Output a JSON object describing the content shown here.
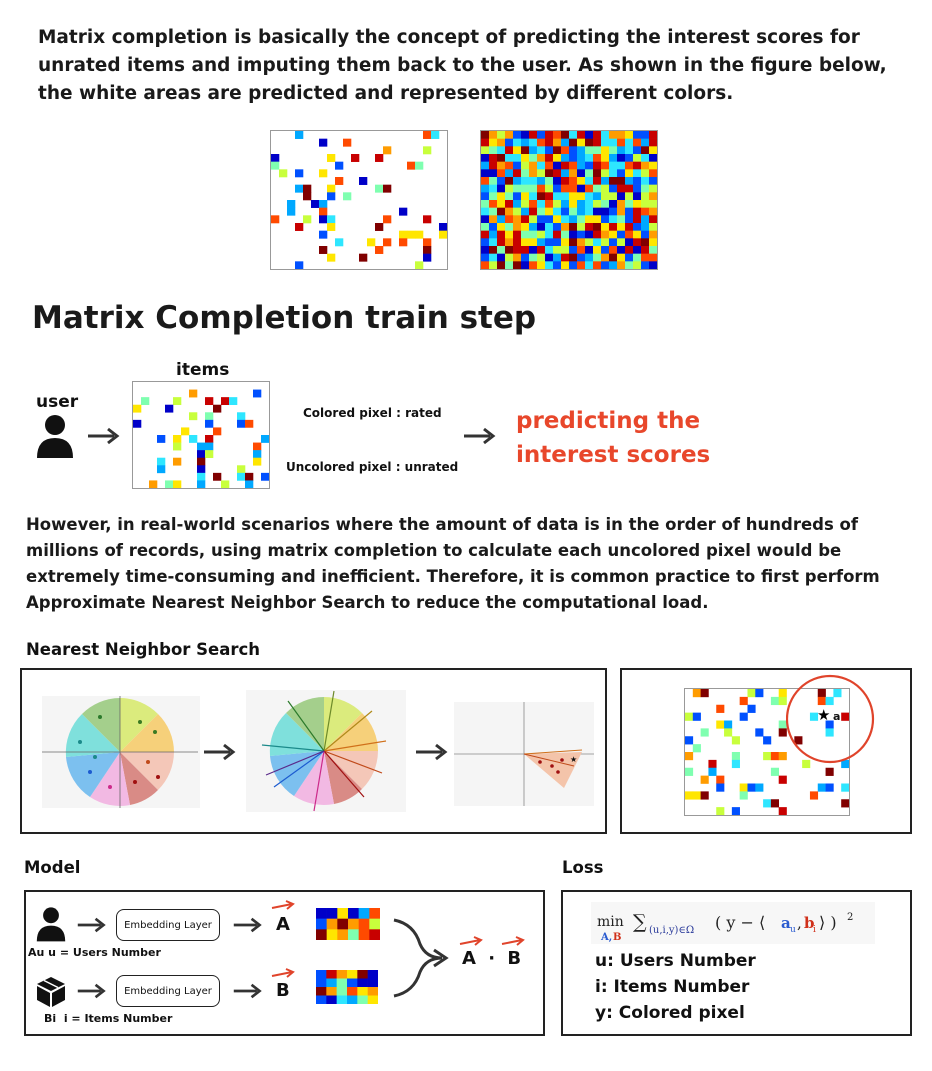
{
  "intro": {
    "text": "Matrix completion is basically the concept of predicting the interest scores for unrated items and imputing them back to the user. As shown in the figure below, the white areas are predicted and represented by different colors."
  },
  "train": {
    "title": "Matrix Completion train step",
    "user_label": "user",
    "items_label": "items",
    "colored_label": "Colored pixel : rated",
    "uncolored_label": "Uncolored pixel : unrated",
    "result_line1": "predicting the",
    "result_line2": "interest scores",
    "result_color": "#e8472b"
  },
  "however": {
    "text": "However, in real-world scenarios where the amount of data is in the order of hundreds of millions of records, using matrix completion to calculate each uncolored pixel would be extremely time-consuming and inefficient. Therefore, it is common practice to first perform Approximate Nearest Neighbor Search to reduce the computational load."
  },
  "nns": {
    "title": "Nearest Neighbor Search",
    "star_label": "a"
  },
  "model": {
    "title": "Model",
    "embedding_label_1": "Embedding Layer",
    "embedding_label_2": "Embedding Layer",
    "user_caption": "Au u = Users Number",
    "item_caption": "Bi  i = Items Number",
    "vec_a": "A",
    "vec_b": "B",
    "vec_a2": "A",
    "dot": "·",
    "vec_b2": "B"
  },
  "loss": {
    "title": "Loss",
    "legend": [
      "u: Users Number",
      "i: Items Number",
      "y: Colored pixel"
    ]
  },
  "palette": [
    "#0000c8",
    "#0050ff",
    "#00a8ff",
    "#2ee6ff",
    "#7fffb0",
    "#c8ff3c",
    "#ffe600",
    "#ff9c00",
    "#ff4a00",
    "#c80000",
    "#800000"
  ]
}
